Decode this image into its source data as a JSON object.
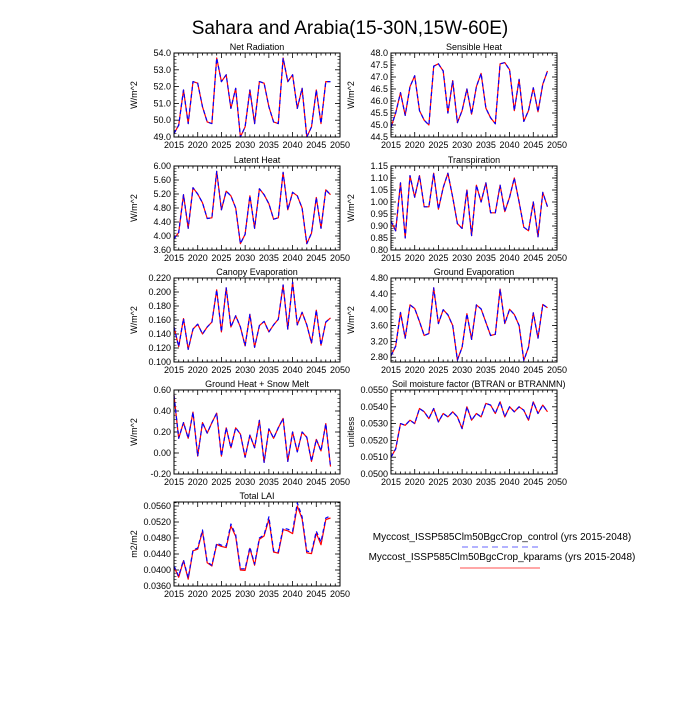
{
  "title": "Sahara and Arabia(15-30N,15W-60E)",
  "legend": {
    "position": "bottom-right",
    "entries": [
      {
        "label": "Myccost_ISSP585Clm50BgcCrop_control (yrs 2015-2048)",
        "color": "#7a7aff",
        "style": "dashed"
      },
      {
        "label": "Myccost_ISSP585Clm50BgcCrop_kparams (yrs 2015-2048)",
        "color": "#ff6a6a",
        "style": "solid"
      }
    ]
  },
  "colors": {
    "control": "#0000ff",
    "kparams": "#ff0000"
  },
  "chart_data": [
    {
      "type": "line",
      "title": "Net Radiation",
      "ylabel": "W/m^2",
      "xlim": [
        2015,
        2050
      ],
      "ylim": [
        49.0,
        54.0
      ],
      "xticks": [
        "2015",
        "2020",
        "2025",
        "2030",
        "2035",
        "2040",
        "2045",
        "2050"
      ],
      "yticks": [
        "49.0",
        "50.0",
        "51.0",
        "52.0",
        "53.0",
        "54.0"
      ],
      "x_start": 2015,
      "series": [
        {
          "name": "control",
          "values": [
            49.2,
            49.7,
            51.8,
            49.8,
            52.3,
            52.2,
            50.8,
            49.9,
            49.8,
            53.7,
            52.3,
            52.7,
            50.7,
            51.9,
            49.0,
            49.6,
            51.8,
            49.8,
            52.3,
            52.2,
            50.8,
            49.9,
            49.8,
            53.7,
            52.3,
            52.7,
            50.7,
            51.9,
            49.0,
            49.6,
            51.8,
            49.8,
            52.3,
            52.3
          ]
        },
        {
          "name": "kparams",
          "values": [
            49.2,
            49.7,
            51.8,
            49.8,
            52.3,
            52.2,
            50.8,
            49.9,
            49.8,
            53.7,
            52.3,
            52.7,
            50.7,
            51.9,
            49.0,
            49.6,
            51.8,
            49.8,
            52.3,
            52.2,
            50.8,
            49.9,
            49.8,
            53.7,
            52.3,
            52.7,
            50.7,
            51.9,
            49.0,
            49.6,
            51.8,
            49.8,
            52.3,
            52.3
          ]
        }
      ]
    },
    {
      "type": "line",
      "title": "Sensible Heat",
      "ylabel": "W/m^2",
      "xlim": [
        2015,
        2050
      ],
      "ylim": [
        44.5,
        48.0
      ],
      "xticks": [
        "2015",
        "2020",
        "2025",
        "2030",
        "2035",
        "2040",
        "2045",
        "2050"
      ],
      "yticks": [
        "44.5",
        "45.0",
        "45.5",
        "46.0",
        "46.5",
        "47.0",
        "47.5",
        "48.0"
      ],
      "x_start": 2015,
      "series": [
        {
          "name": "control",
          "values": [
            44.9,
            45.5,
            46.35,
            45.4,
            46.6,
            47.05,
            45.6,
            45.2,
            45.0,
            47.45,
            47.55,
            47.25,
            45.5,
            46.85,
            45.1,
            45.6,
            46.5,
            45.45,
            46.6,
            47.15,
            45.7,
            45.3,
            45.05,
            47.55,
            47.6,
            47.3,
            45.6,
            46.9,
            45.15,
            45.6,
            46.55,
            45.55,
            46.7,
            47.25
          ]
        },
        {
          "name": "kparams",
          "values": [
            44.9,
            45.5,
            46.35,
            45.4,
            46.6,
            47.05,
            45.6,
            45.2,
            45.0,
            47.45,
            47.55,
            47.25,
            45.5,
            46.85,
            45.1,
            45.6,
            46.5,
            45.45,
            46.6,
            47.15,
            45.7,
            45.3,
            45.05,
            47.55,
            47.6,
            47.3,
            45.6,
            46.9,
            45.15,
            45.6,
            46.55,
            45.55,
            46.7,
            47.25
          ]
        }
      ]
    },
    {
      "type": "line",
      "title": "Latent Heat",
      "ylabel": "W/m^2",
      "xlim": [
        2015,
        2050
      ],
      "ylim": [
        3.6,
        6.0
      ],
      "xticks": [
        "2015",
        "2020",
        "2025",
        "2030",
        "2035",
        "2040",
        "2045",
        "2050"
      ],
      "yticks": [
        "3.60",
        "4.00",
        "4.40",
        "4.80",
        "5.20",
        "5.60",
        "6.00"
      ],
      "x_start": 2015,
      "series": [
        {
          "name": "control",
          "values": [
            3.92,
            4.1,
            5.18,
            4.22,
            5.38,
            5.2,
            4.95,
            4.5,
            4.52,
            5.85,
            4.75,
            5.28,
            5.15,
            4.8,
            3.78,
            4.05,
            5.15,
            4.22,
            5.35,
            5.18,
            4.92,
            4.48,
            4.52,
            5.82,
            4.75,
            5.25,
            5.15,
            4.8,
            3.78,
            4.08,
            5.1,
            4.22,
            5.32,
            5.18
          ]
        },
        {
          "name": "kparams",
          "values": [
            3.92,
            4.1,
            5.18,
            4.22,
            5.38,
            5.2,
            4.95,
            4.5,
            4.52,
            5.85,
            4.75,
            5.28,
            5.15,
            4.8,
            3.78,
            4.05,
            5.15,
            4.22,
            5.35,
            5.18,
            4.92,
            4.48,
            4.52,
            5.82,
            4.75,
            5.25,
            5.15,
            4.8,
            3.78,
            4.08,
            5.1,
            4.22,
            5.32,
            5.18
          ]
        }
      ]
    },
    {
      "type": "line",
      "title": "Transpiration",
      "ylabel": "W/m^2",
      "xlim": [
        2015,
        2050
      ],
      "ylim": [
        0.8,
        1.15
      ],
      "xticks": [
        "2015",
        "2020",
        "2025",
        "2030",
        "2035",
        "2040",
        "2045",
        "2050"
      ],
      "yticks": [
        "0.80",
        "0.85",
        "0.90",
        "0.95",
        "1.00",
        "1.05",
        "1.10",
        "1.15"
      ],
      "x_start": 2015,
      "series": [
        {
          "name": "control",
          "values": [
            0.92,
            0.88,
            1.08,
            0.85,
            1.11,
            1.02,
            1.11,
            0.98,
            0.98,
            1.12,
            0.97,
            1.06,
            1.12,
            1.02,
            0.91,
            0.89,
            1.05,
            0.86,
            1.07,
            1.0,
            1.08,
            0.955,
            0.955,
            1.07,
            0.96,
            1.02,
            1.1,
            1.0,
            0.895,
            0.88,
            1.0,
            0.855,
            1.04,
            0.98
          ]
        },
        {
          "name": "kparams",
          "values": [
            0.92,
            0.88,
            1.08,
            0.85,
            1.11,
            1.02,
            1.11,
            0.98,
            0.98,
            1.12,
            0.97,
            1.06,
            1.12,
            1.02,
            0.91,
            0.89,
            1.05,
            0.86,
            1.07,
            1.0,
            1.08,
            0.955,
            0.955,
            1.07,
            0.96,
            1.02,
            1.1,
            1.0,
            0.895,
            0.88,
            1.0,
            0.855,
            1.04,
            0.98
          ]
        }
      ]
    },
    {
      "type": "line",
      "title": "Canopy Evaporation",
      "ylabel": "W/m^2",
      "xlim": [
        2015,
        2050
      ],
      "ylim": [
        0.1,
        0.22
      ],
      "xticks": [
        "2015",
        "2020",
        "2025",
        "2030",
        "2035",
        "2040",
        "2045",
        "2050"
      ],
      "yticks": [
        "0.100",
        "0.120",
        "0.140",
        "0.160",
        "0.180",
        "0.200",
        "0.220"
      ],
      "x_start": 2015,
      "series": [
        {
          "name": "control",
          "values": [
            0.15,
            0.122,
            0.162,
            0.118,
            0.147,
            0.154,
            0.14,
            0.15,
            0.157,
            0.203,
            0.143,
            0.206,
            0.15,
            0.166,
            0.15,
            0.123,
            0.168,
            0.121,
            0.152,
            0.158,
            0.143,
            0.153,
            0.161,
            0.21,
            0.147,
            0.214,
            0.153,
            0.171,
            0.153,
            0.127,
            0.174,
            0.124,
            0.157,
            0.163
          ]
        },
        {
          "name": "kparams",
          "values": [
            0.15,
            0.122,
            0.162,
            0.118,
            0.147,
            0.154,
            0.14,
            0.15,
            0.157,
            0.203,
            0.143,
            0.206,
            0.15,
            0.166,
            0.15,
            0.123,
            0.168,
            0.121,
            0.152,
            0.158,
            0.143,
            0.153,
            0.161,
            0.21,
            0.147,
            0.214,
            0.153,
            0.171,
            0.153,
            0.127,
            0.174,
            0.124,
            0.157,
            0.163
          ]
        }
      ]
    },
    {
      "type": "line",
      "title": "Ground Evaporation",
      "ylabel": "W/m^2",
      "xlim": [
        2015,
        2050
      ],
      "ylim": [
        2.68,
        4.8
      ],
      "xticks": [
        "2015",
        "2020",
        "2025",
        "2030",
        "2035",
        "2040",
        "2045",
        "2050"
      ],
      "yticks": [
        "2.80",
        "3.20",
        "3.60",
        "4.00",
        "4.40",
        "4.80"
      ],
      "x_start": 2015,
      "series": [
        {
          "name": "control",
          "values": [
            2.84,
            3.08,
            3.93,
            3.28,
            4.12,
            4.03,
            3.7,
            3.35,
            3.4,
            4.55,
            3.65,
            4.0,
            3.87,
            3.6,
            2.73,
            3.05,
            3.9,
            3.25,
            4.12,
            4.02,
            3.68,
            3.35,
            3.38,
            4.52,
            3.65,
            4.01,
            3.88,
            3.6,
            2.72,
            3.05,
            3.92,
            3.28,
            4.13,
            4.05
          ]
        },
        {
          "name": "kparams",
          "values": [
            2.84,
            3.08,
            3.93,
            3.28,
            4.12,
            4.03,
            3.7,
            3.35,
            3.4,
            4.55,
            3.65,
            4.0,
            3.87,
            3.6,
            2.73,
            3.05,
            3.9,
            3.25,
            4.12,
            4.02,
            3.68,
            3.35,
            3.38,
            4.52,
            3.65,
            4.01,
            3.88,
            3.6,
            2.72,
            3.05,
            3.92,
            3.28,
            4.13,
            4.05
          ]
        }
      ]
    },
    {
      "type": "line",
      "title": "Ground Heat + Snow Melt",
      "ylabel": "W/m^2",
      "xlim": [
        2015,
        2050
      ],
      "ylim": [
        -0.2,
        0.6
      ],
      "xticks": [
        "2015",
        "2020",
        "2025",
        "2030",
        "2035",
        "2040",
        "2045",
        "2050"
      ],
      "yticks": [
        "-0.20",
        "0.00",
        "0.20",
        "0.40",
        "0.60"
      ],
      "x_start": 2015,
      "series": [
        {
          "name": "control",
          "values": [
            0.55,
            0.14,
            0.29,
            0.14,
            0.39,
            -0.03,
            0.29,
            0.19,
            0.29,
            0.38,
            -0.03,
            0.24,
            0.05,
            0.24,
            0.18,
            -0.04,
            0.17,
            0.05,
            0.31,
            -0.09,
            0.23,
            0.14,
            0.24,
            0.33,
            -0.08,
            0.2,
            0.01,
            0.2,
            0.15,
            -0.08,
            0.13,
            0.02,
            0.28,
            -0.13
          ]
        },
        {
          "name": "kparams",
          "values": [
            0.55,
            0.14,
            0.29,
            0.14,
            0.39,
            -0.03,
            0.29,
            0.19,
            0.29,
            0.38,
            -0.03,
            0.24,
            0.05,
            0.24,
            0.18,
            -0.04,
            0.17,
            0.05,
            0.31,
            -0.09,
            0.23,
            0.14,
            0.24,
            0.33,
            -0.08,
            0.2,
            0.01,
            0.2,
            0.15,
            -0.08,
            0.13,
            0.02,
            0.28,
            -0.13
          ]
        }
      ]
    },
    {
      "type": "line",
      "title": "Soil moisture factor (BTRAN or BTRANMN)",
      "ylabel": "unitless",
      "xlim": [
        2015,
        2050
      ],
      "ylim": [
        0.05,
        0.055
      ],
      "xticks": [
        "2015",
        "2020",
        "2025",
        "2030",
        "2035",
        "2040",
        "2045",
        "2050"
      ],
      "yticks": [
        "0.0500",
        "0.0510",
        "0.0520",
        "0.0530",
        "0.0540",
        "0.0550"
      ],
      "x_start": 2015,
      "series": [
        {
          "name": "control",
          "values": [
            0.051,
            0.0515,
            0.053,
            0.0529,
            0.0532,
            0.053,
            0.0539,
            0.0537,
            0.0533,
            0.0539,
            0.0531,
            0.0536,
            0.0534,
            0.0537,
            0.0534,
            0.0527,
            0.054,
            0.0532,
            0.0536,
            0.0534,
            0.0542,
            0.0541,
            0.0536,
            0.0543,
            0.0534,
            0.054,
            0.0537,
            0.054,
            0.0538,
            0.0532,
            0.0543,
            0.0536,
            0.0541,
            0.0537
          ]
        },
        {
          "name": "kparams",
          "values": [
            0.051,
            0.0515,
            0.053,
            0.0529,
            0.0532,
            0.053,
            0.0539,
            0.0537,
            0.0533,
            0.0539,
            0.0531,
            0.0536,
            0.0534,
            0.0537,
            0.0534,
            0.0527,
            0.054,
            0.0532,
            0.0536,
            0.0534,
            0.0542,
            0.0541,
            0.0536,
            0.0543,
            0.0534,
            0.054,
            0.0537,
            0.054,
            0.0538,
            0.0532,
            0.0543,
            0.0536,
            0.0541,
            0.0537
          ]
        }
      ]
    },
    {
      "type": "line",
      "title": "Total LAI",
      "ylabel": "m2/m2",
      "xlim": [
        2015,
        2050
      ],
      "ylim": [
        0.036,
        0.057
      ],
      "xticks": [
        "2015",
        "2020",
        "2025",
        "2030",
        "2035",
        "2040",
        "2045",
        "2050"
      ],
      "yticks": [
        "0.0360",
        "0.0400",
        "0.0440",
        "0.0480",
        "0.0520",
        "0.0560"
      ],
      "x_start": 2015,
      "series": [
        {
          "name": "control",
          "values": [
            0.041,
            0.0385,
            0.0425,
            0.038,
            0.045,
            0.0455,
            0.05,
            0.042,
            0.0412,
            0.0467,
            0.0462,
            0.046,
            0.0515,
            0.0488,
            0.0403,
            0.0403,
            0.0457,
            0.0415,
            0.048,
            0.0488,
            0.0533,
            0.0448,
            0.0445,
            0.0505,
            0.0502,
            0.0497,
            0.0568,
            0.0533,
            0.0447,
            0.0445,
            0.0497,
            0.047,
            0.053,
            0.0535
          ]
        },
        {
          "name": "kparams",
          "values": [
            0.0408,
            0.0382,
            0.0423,
            0.0377,
            0.0448,
            0.0452,
            0.0497,
            0.0418,
            0.041,
            0.0464,
            0.0459,
            0.0456,
            0.051,
            0.0484,
            0.04,
            0.0399,
            0.0454,
            0.0412,
            0.0477,
            0.0485,
            0.0527,
            0.0445,
            0.0442,
            0.0501,
            0.0498,
            0.0491,
            0.056,
            0.0528,
            0.0443,
            0.0441,
            0.0492,
            0.0463,
            0.0526,
            0.053
          ]
        }
      ]
    }
  ]
}
